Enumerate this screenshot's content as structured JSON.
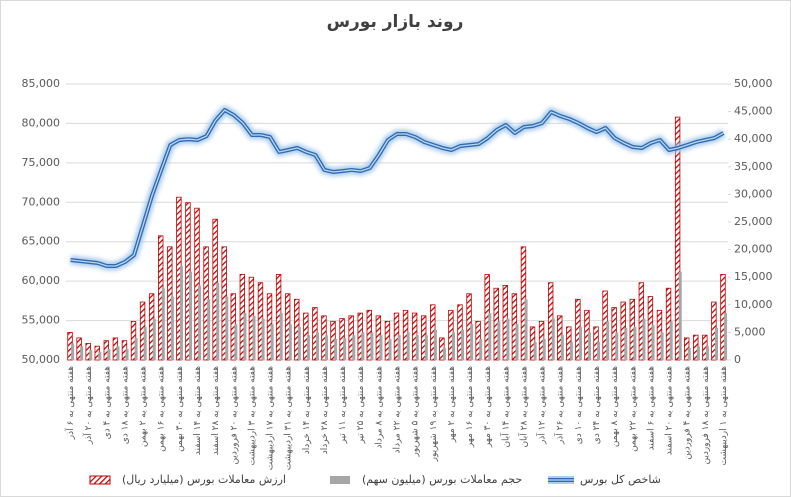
{
  "chart_data": {
    "type": "combo",
    "title": "روند بازار بورس",
    "categories": [
      "هفته منتهی به ۶ آذر",
      null,
      "هفته منتهی به ۲۰ آذر",
      null,
      "هفته منتهی به ۴ دی",
      null,
      "هفته منتهی به ۱۸ دی",
      null,
      "هفته منتهی به ۲ بهمن",
      null,
      "هفته منتهی به ۱۶ بهمن",
      null,
      "هفته منتهی به ۳۰ بهمن",
      null,
      "هفته منتهی به ۱۴ اسفند",
      null,
      "هفته منتهی به ۲۸ اسفند",
      null,
      "هفته منتهی به ۲۰ فروردین",
      null,
      "هفته منتهی به ۳ اردیبهشت",
      null,
      "هفته منتهی به ۱۷ اردیبهشت",
      null,
      "هفته منتهی به ۳۱ اردیبهشت",
      null,
      "هفته منتهی به ۱۴ خرداد",
      null,
      "هفته منتهی به ۲۸ خرداد",
      null,
      "هفته منتهی به ۱۱ تیر",
      null,
      "هفته منتهی به ۲۵ تیر",
      null,
      "هفته منتهی به ۸ مرداد",
      null,
      "هفته منتهی به ۲۲ مرداد",
      null,
      "هفته منتهی به ۵ شهریور",
      null,
      "هفته منتهی به ۱۹ شهریور",
      null,
      "هفته منتهی به ۲ مهر",
      null,
      "هفته منتهی به ۱۶ مهر",
      null,
      "هفته منتهی به ۳۰ مهر",
      null,
      "هفته منتهی به ۱۴ آبان",
      null,
      "هفته منتهی به ۲۸ آبان",
      null,
      "هفته منتهی به ۱۲ آذر",
      null,
      "هفته منتهی به ۲۶ آذر",
      null,
      "هفته منتهی به ۱۰ دی",
      null,
      "هفته منتهی به ۲۴ دی",
      null,
      "هفته منتهی به ۸ بهمن",
      null,
      "هفته منتهی به ۲۲ بهمن",
      null,
      "هفته منتهی به ۶ اسفند",
      null,
      "هفته منتهی به ۲۰ اسفند",
      null,
      "هفته منتهی به ۴ فروردین",
      null,
      "هفته منتهی به ۱۸ فروردین",
      null,
      "هفته منتهی به ۱ اردیبهشت"
    ],
    "series": [
      {
        "name": "ارزش معاملات بورس (میلیارد ریال)",
        "type": "bar",
        "axis": "y2",
        "color": "#c00000",
        "values": [
          5000,
          4000,
          3000,
          2500,
          3500,
          4000,
          3500,
          7000,
          10500,
          12000,
          22500,
          20500,
          29500,
          28500,
          27500,
          20500,
          25500,
          20500,
          12000,
          15500,
          15000,
          14000,
          12000,
          15500,
          12000,
          11000,
          8500,
          9500,
          8000,
          7000,
          7500,
          8000,
          8500,
          9000,
          8000,
          7000,
          8500,
          9000,
          8500,
          8000,
          10000,
          4000,
          9000,
          10000,
          12000,
          7000,
          15500,
          13000,
          13500,
          12000,
          20500,
          6000,
          7000,
          14000,
          8000,
          6000,
          11000,
          9000,
          6000,
          12500,
          9500,
          10500,
          11000,
          14000,
          11500,
          9000,
          13000,
          44000,
          4000,
          4500,
          4500,
          10500,
          15500
        ]
      },
      {
        "name": "حجم معاملات بورس (میلیون سهم)",
        "type": "bar",
        "axis": "y2",
        "color": "#a6a6a6",
        "values": [
          3000,
          2500,
          1800,
          1500,
          2000,
          2500,
          2000,
          4000,
          6000,
          7500,
          13000,
          11500,
          17000,
          16000,
          13500,
          11000,
          14000,
          11500,
          6500,
          8500,
          8000,
          7500,
          6500,
          8500,
          6500,
          6000,
          4500,
          5000,
          4500,
          3800,
          4000,
          4500,
          5000,
          5000,
          4500,
          3800,
          4500,
          5000,
          4500,
          4500,
          5500,
          2200,
          5000,
          5500,
          6500,
          3800,
          8500,
          7000,
          7500,
          6500,
          11000,
          3300,
          3800,
          7500,
          4500,
          3300,
          6000,
          5000,
          3300,
          7000,
          5000,
          5800,
          6000,
          7500,
          6300,
          5000,
          7000,
          16000,
          2200,
          2500,
          2500,
          5800,
          8500
        ]
      },
      {
        "name": "شاخص کل بورس",
        "type": "line",
        "axis": "y",
        "color": "#2e6bb5",
        "values": [
          62680,
          62550,
          62430,
          62300,
          61920,
          61920,
          62430,
          63300,
          67100,
          70900,
          74100,
          77260,
          77900,
          78000,
          77900,
          78400,
          80400,
          81700,
          81060,
          80050,
          78530,
          78530,
          78280,
          76380,
          76630,
          76890,
          76380,
          76000,
          74100,
          73840,
          73970,
          74100,
          73970,
          74350,
          76000,
          77900,
          78660,
          78660,
          78280,
          77650,
          77260,
          76890,
          76630,
          77140,
          77260,
          77390,
          78150,
          79170,
          79800,
          78790,
          79550,
          79670,
          80050,
          81450,
          80940,
          80560,
          80050,
          79420,
          78910,
          79420,
          78150,
          77520,
          77010,
          76890,
          77520,
          77900,
          76630,
          76890,
          77260,
          77650,
          77900,
          78150,
          78790
        ]
      }
    ],
    "ylim": [
      50000,
      85000
    ],
    "yticks": [
      {
        "value": 50000,
        "label": "50,000"
      },
      {
        "value": 55000,
        "label": "55,000"
      },
      {
        "value": 60000,
        "label": "60,000"
      },
      {
        "value": 65000,
        "label": "65,000"
      },
      {
        "value": 70000,
        "label": "70,000"
      },
      {
        "value": 75000,
        "label": "75,000"
      },
      {
        "value": 80000,
        "label": "80,000"
      },
      {
        "value": 85000,
        "label": "85,000"
      }
    ],
    "y2lim": [
      0,
      50000
    ],
    "y2ticks": [
      0,
      {
        "value": 5000,
        "label": "5,000"
      },
      {
        "value": 10000,
        "label": "10,000"
      },
      {
        "value": 15000,
        "label": "15,000"
      },
      {
        "value": 20000,
        "label": "20,000"
      },
      {
        "value": 25000,
        "label": "25,000"
      },
      {
        "value": 30000,
        "label": "30,000"
      },
      {
        "value": 35000,
        "label": "35,000"
      },
      {
        "value": 40000,
        "label": "40,000"
      },
      {
        "value": 45000,
        "label": "45,000"
      },
      {
        "value": 50000,
        "label": "50,000"
      }
    ],
    "grid": true,
    "legend": "bottom"
  }
}
